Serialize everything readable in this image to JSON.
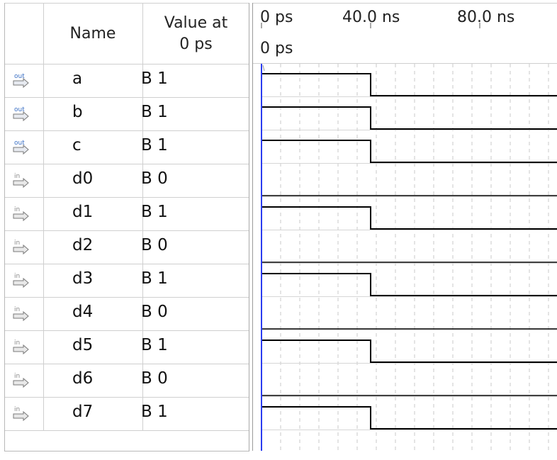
{
  "table": {
    "headers": {
      "name": "Name",
      "value_line1": "Value at",
      "value_line2": "0 ps"
    },
    "rows": [
      {
        "direction": "out",
        "name": "a",
        "value": "B 1",
        "level": 1
      },
      {
        "direction": "out",
        "name": "b",
        "value": "B 1",
        "level": 1
      },
      {
        "direction": "out",
        "name": "c",
        "value": "B 1",
        "level": 1
      },
      {
        "direction": "in",
        "name": "d0",
        "value": "B 0",
        "level": 0
      },
      {
        "direction": "in",
        "name": "d1",
        "value": "B 1",
        "level": 1
      },
      {
        "direction": "in",
        "name": "d2",
        "value": "B 0",
        "level": 0
      },
      {
        "direction": "in",
        "name": "d3",
        "value": "B 1",
        "level": 1
      },
      {
        "direction": "in",
        "name": "d4",
        "value": "B 0",
        "level": 0
      },
      {
        "direction": "in",
        "name": "d5",
        "value": "B 1",
        "level": 1
      },
      {
        "direction": "in",
        "name": "d6",
        "value": "B 0",
        "level": 0
      },
      {
        "direction": "in",
        "name": "d7",
        "value": "B 1",
        "level": 1
      }
    ]
  },
  "timeline": {
    "ticks": [
      "0 ps",
      "40.0 ns",
      "80.0 ns"
    ],
    "cursor_label": "0 ps",
    "transition_time_ns": 40
  },
  "icons": {
    "out": "output-pin-icon",
    "in": "input-pin-icon"
  },
  "colors": {
    "cursor": "#2a3cf0",
    "grid": "#c8c8c8",
    "wave": "#000000",
    "icon_out": "#3a6fc4",
    "icon_in": "#8a8a8a"
  }
}
